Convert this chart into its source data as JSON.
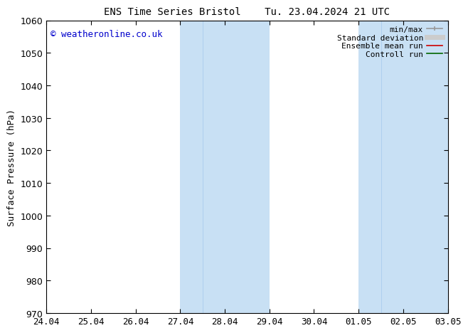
{
  "title_left": "ENS Time Series Bristol",
  "title_right": "Tu. 23.04.2024 21 UTC",
  "ylabel": "Surface Pressure (hPa)",
  "ylim": [
    970,
    1060
  ],
  "yticks": [
    970,
    980,
    990,
    1000,
    1010,
    1020,
    1030,
    1040,
    1050,
    1060
  ],
  "xlabels": [
    "24.04",
    "25.04",
    "26.04",
    "27.04",
    "28.04",
    "29.04",
    "30.04",
    "01.05",
    "02.05",
    "03.05"
  ],
  "x_positions": [
    0,
    1,
    2,
    3,
    4,
    5,
    6,
    7,
    8,
    9
  ],
  "shaded_bands": [
    {
      "xmin": 3.0,
      "xmid": 3.5,
      "xmax": 5.0
    },
    {
      "xmin": 7.0,
      "xmid": 7.5,
      "xmax": 9.0
    }
  ],
  "shade_color_light": "#ddeeff",
  "shade_color_mid": "#c8e0f4",
  "shade_line_color": "#aaccee",
  "background_color": "#ffffff",
  "watermark": "© weatheronline.co.uk",
  "watermark_color": "#0000cc",
  "legend_labels": [
    "min/max",
    "Standard deviation",
    "Ensemble mean run",
    "Controll run"
  ],
  "legend_colors": [
    "#999999",
    "#cccccc",
    "#cc0000",
    "#006600"
  ],
  "legend_lw": [
    1.2,
    5,
    1.2,
    1.2
  ],
  "title_fontsize": 10,
  "axis_label_fontsize": 9,
  "tick_fontsize": 9,
  "legend_fontsize": 8,
  "watermark_fontsize": 9
}
